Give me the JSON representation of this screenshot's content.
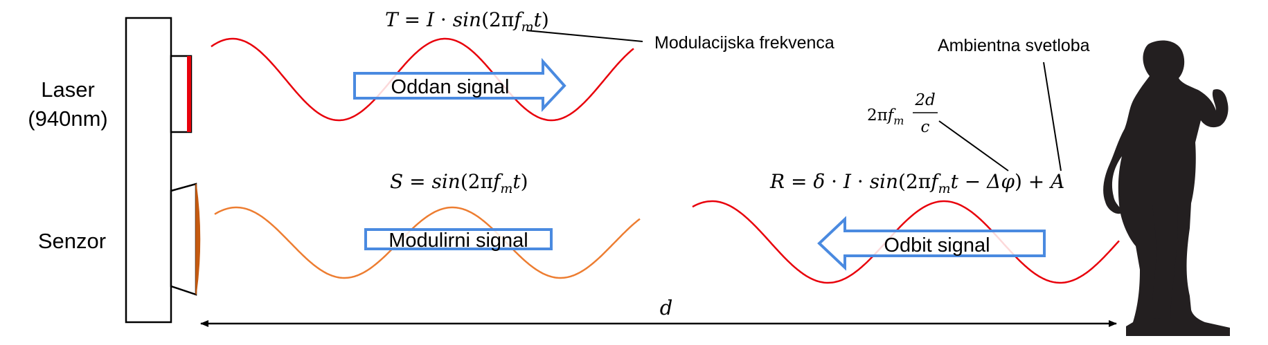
{
  "labels": {
    "laser_line1": "Laser",
    "laser_line2": "(940nm)",
    "sensor": "Senzor",
    "modulation_frequency": "Modulacijska frekvenca",
    "ambient_light": "Ambientna svetloba",
    "distance": "d"
  },
  "arrows": {
    "emitted": "Oddan signal",
    "modulating": "Modulirni signal",
    "reflected": "Odbit signal"
  },
  "equations": {
    "T": {
      "lhs": "T",
      "rhs_a": "I",
      "fn": "sin",
      "arg_a": "2π",
      "f": "f",
      "sub": "m",
      "arg_b": "t"
    },
    "S": {
      "lhs": "S",
      "fn": "sin",
      "arg_a": "2π",
      "f": "f",
      "sub": "m",
      "arg_b": "t"
    },
    "R": {
      "lhs": "R",
      "delta": "δ",
      "rhs_a": "I",
      "fn": "sin",
      "arg_a": "2π",
      "f": "f",
      "sub": "m",
      "arg_b": "t",
      "phase": "Δφ",
      "amb": "A"
    },
    "phase": {
      "pre": "2π",
      "f": "f",
      "sub": "m",
      "num": "2d",
      "den": "c"
    }
  },
  "colors": {
    "emitted_wave": "#e8000b",
    "modulating_wave": "#ed7d31",
    "reflected_wave": "#e8000b",
    "arrow_outline": "#4a8ae0",
    "sensor_lens": "#c55a11",
    "laser_strip": "#e8000b",
    "silhouette": "#231f20"
  }
}
